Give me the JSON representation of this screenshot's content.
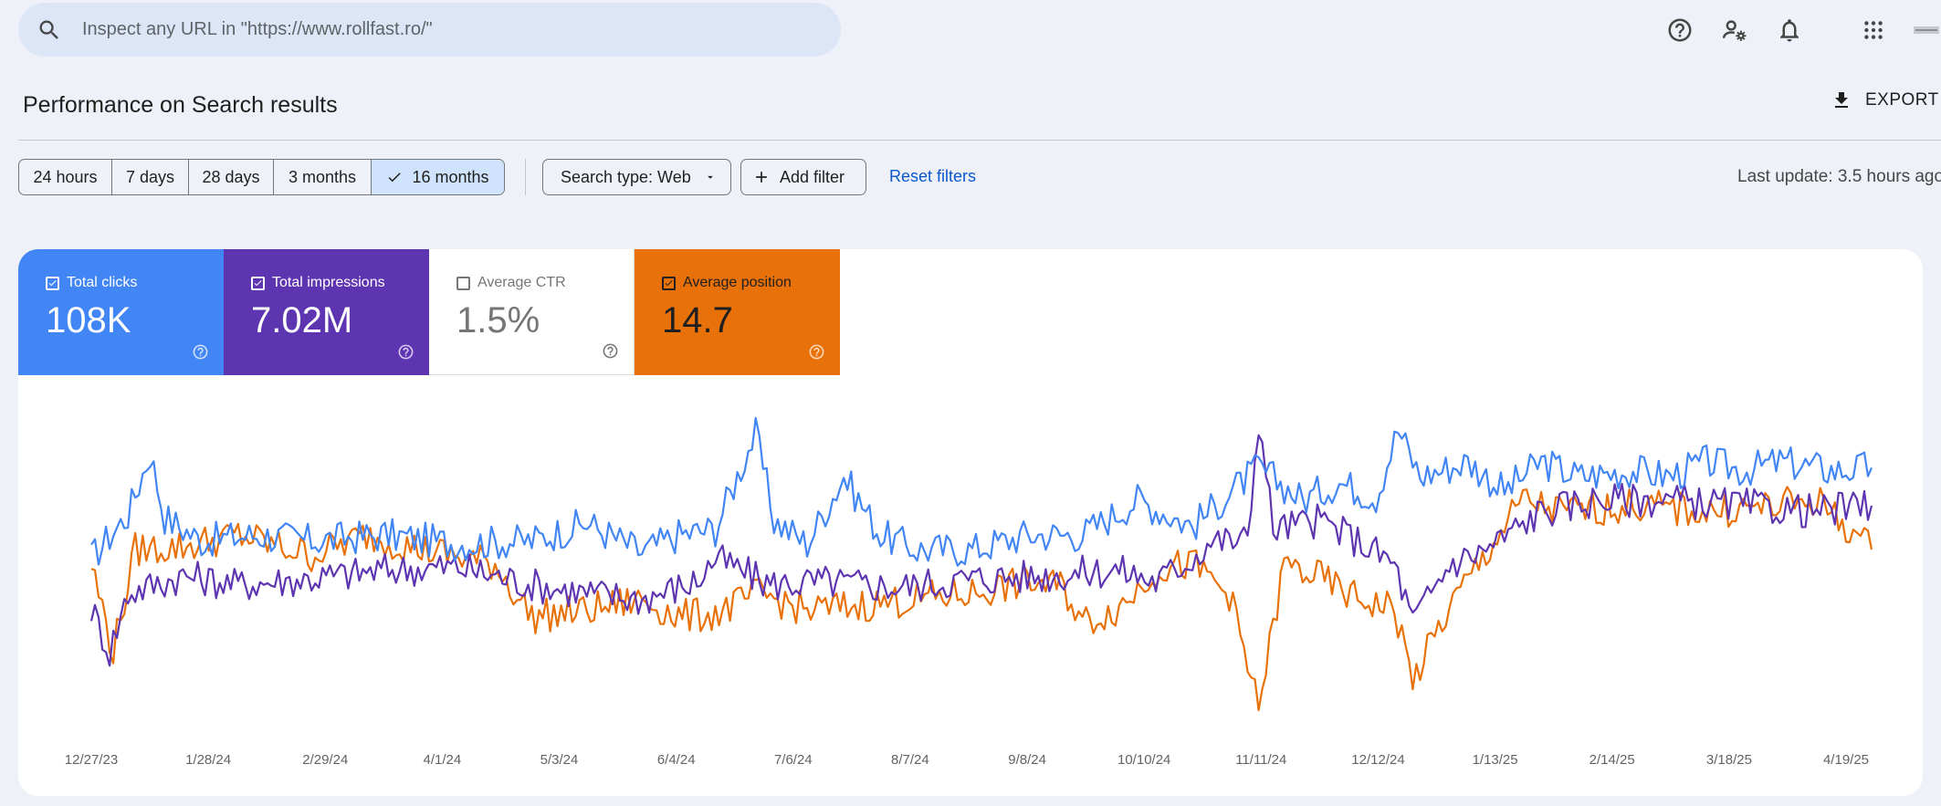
{
  "search": {
    "placeholder": "Inspect any URL in \"https://www.rollfast.ro/\""
  },
  "header": {
    "title": "Performance on Search results",
    "export_label": "EXPORT",
    "icons": [
      "help-icon",
      "manage-accounts-icon",
      "notifications-icon",
      "apps-icon",
      "account-avatar"
    ]
  },
  "filters": {
    "date_ranges": [
      "24 hours",
      "7 days",
      "28 days",
      "3 months",
      "16 months"
    ],
    "selected_range": "16 months",
    "search_type": "Search type: Web",
    "add_filter": "Add filter",
    "reset": "Reset filters",
    "last_update": "Last update: 3.5 hours ago"
  },
  "metrics": [
    {
      "label": "Total clicks",
      "value": "108K",
      "checked": true,
      "color": "#4285f4"
    },
    {
      "label": "Total impressions",
      "value": "7.02M",
      "checked": true,
      "color": "#5e35b1"
    },
    {
      "label": "Average CTR",
      "value": "1.5%",
      "checked": false,
      "color": "#ffffff"
    },
    {
      "label": "Average position",
      "value": "14.7",
      "checked": true,
      "color": "#e8710a"
    }
  ],
  "chart_data": {
    "type": "line",
    "x_tick_labels": [
      "12/27/23",
      "1/28/24",
      "2/29/24",
      "4/1/24",
      "5/3/24",
      "6/4/24",
      "7/6/24",
      "8/7/24",
      "9/8/24",
      "10/10/24",
      "11/11/24",
      "12/12/24",
      "1/13/25",
      "2/14/25",
      "3/18/25",
      "4/19/25"
    ],
    "x_range": [
      "12/27/23",
      "4/26/25"
    ],
    "grid": false,
    "legend": "none",
    "series": [
      {
        "color": "#4285f4",
        "points": [
          [
            0,
            0.52
          ],
          [
            10,
            0.67
          ],
          [
            16,
            0.88
          ],
          [
            20,
            0.66
          ],
          [
            30,
            0.58
          ],
          [
            45,
            0.6
          ],
          [
            60,
            0.58
          ],
          [
            80,
            0.6
          ],
          [
            100,
            0.57
          ],
          [
            120,
            0.58
          ],
          [
            135,
            0.64
          ],
          [
            150,
            0.54
          ],
          [
            160,
            0.6
          ],
          [
            170,
            0.62
          ],
          [
            181,
            0.95
          ],
          [
            186,
            0.65
          ],
          [
            195,
            0.57
          ],
          [
            205,
            0.8
          ],
          [
            215,
            0.6
          ],
          [
            225,
            0.55
          ],
          [
            240,
            0.55
          ],
          [
            255,
            0.6
          ],
          [
            270,
            0.6
          ],
          [
            285,
            0.72
          ],
          [
            300,
            0.63
          ],
          [
            318,
            0.83
          ],
          [
            330,
            0.72
          ],
          [
            340,
            0.78
          ],
          [
            350,
            0.73
          ],
          [
            356,
            0.96
          ],
          [
            362,
            0.8
          ],
          [
            375,
            0.85
          ],
          [
            385,
            0.75
          ],
          [
            395,
            0.85
          ],
          [
            405,
            0.8
          ],
          [
            420,
            0.82
          ],
          [
            430,
            0.8
          ],
          [
            440,
            0.85
          ],
          [
            450,
            0.82
          ],
          [
            460,
            0.85
          ],
          [
            475,
            0.82
          ],
          [
            485,
            0.83
          ]
        ]
      },
      {
        "color": "#5e35b1",
        "points": [
          [
            0,
            0.35
          ],
          [
            5,
            0.2
          ],
          [
            10,
            0.4
          ],
          [
            25,
            0.46
          ],
          [
            40,
            0.43
          ],
          [
            60,
            0.45
          ],
          [
            80,
            0.48
          ],
          [
            100,
            0.49
          ],
          [
            120,
            0.43
          ],
          [
            135,
            0.4
          ],
          [
            150,
            0.38
          ],
          [
            165,
            0.44
          ],
          [
            170,
            0.52
          ],
          [
            185,
            0.43
          ],
          [
            200,
            0.44
          ],
          [
            220,
            0.42
          ],
          [
            240,
            0.45
          ],
          [
            260,
            0.46
          ],
          [
            280,
            0.48
          ],
          [
            290,
            0.44
          ],
          [
            300,
            0.52
          ],
          [
            305,
            0.58
          ],
          [
            315,
            0.58
          ],
          [
            318,
            1.0
          ],
          [
            322,
            0.62
          ],
          [
            335,
            0.65
          ],
          [
            345,
            0.58
          ],
          [
            355,
            0.5
          ],
          [
            360,
            0.3
          ],
          [
            370,
            0.5
          ],
          [
            380,
            0.55
          ],
          [
            395,
            0.68
          ],
          [
            410,
            0.72
          ],
          [
            430,
            0.72
          ],
          [
            450,
            0.7
          ],
          [
            470,
            0.68
          ],
          [
            485,
            0.7
          ]
        ]
      },
      {
        "color": "#e8710a",
        "points": [
          [
            0,
            0.5
          ],
          [
            6,
            0.2
          ],
          [
            12,
            0.55
          ],
          [
            25,
            0.56
          ],
          [
            40,
            0.6
          ],
          [
            60,
            0.53
          ],
          [
            75,
            0.6
          ],
          [
            90,
            0.55
          ],
          [
            110,
            0.5
          ],
          [
            120,
            0.32
          ],
          [
            135,
            0.34
          ],
          [
            150,
            0.38
          ],
          [
            160,
            0.32
          ],
          [
            170,
            0.33
          ],
          [
            182,
            0.4
          ],
          [
            195,
            0.34
          ],
          [
            210,
            0.36
          ],
          [
            225,
            0.38
          ],
          [
            240,
            0.4
          ],
          [
            255,
            0.44
          ],
          [
            265,
            0.42
          ],
          [
            270,
            0.3
          ],
          [
            280,
            0.35
          ],
          [
            290,
            0.48
          ],
          [
            300,
            0.5
          ],
          [
            310,
            0.4
          ],
          [
            318,
            0.0
          ],
          [
            325,
            0.5
          ],
          [
            335,
            0.45
          ],
          [
            345,
            0.38
          ],
          [
            355,
            0.35
          ],
          [
            360,
            0.1
          ],
          [
            370,
            0.35
          ],
          [
            378,
            0.5
          ],
          [
            390,
            0.72
          ],
          [
            400,
            0.68
          ],
          [
            420,
            0.7
          ],
          [
            440,
            0.68
          ],
          [
            460,
            0.7
          ],
          [
            470,
            0.72
          ],
          [
            485,
            0.55
          ]
        ]
      }
    ]
  }
}
